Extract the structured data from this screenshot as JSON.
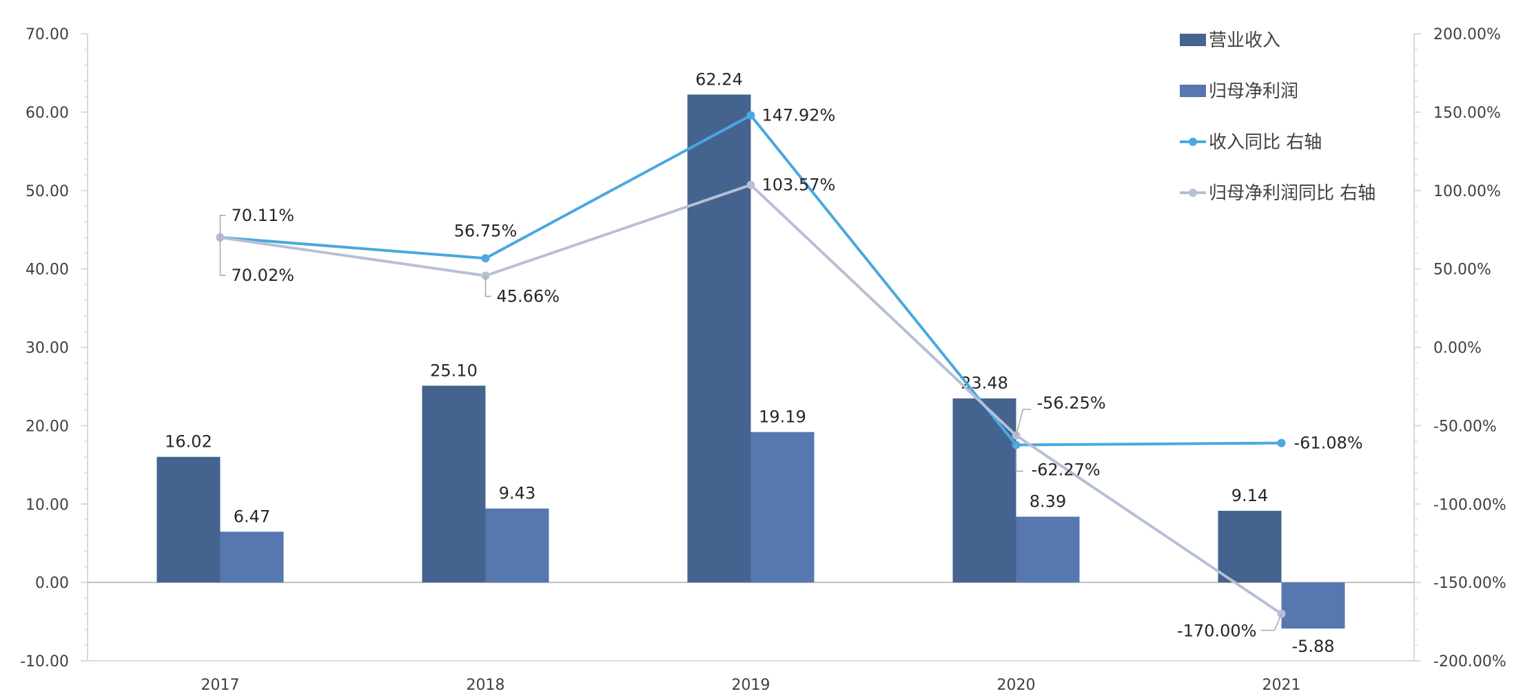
{
  "chart_data": {
    "type": "bar",
    "categories": [
      "2017",
      "2018",
      "2019",
      "2020",
      "2021"
    ],
    "left_axis": {
      "ylim": [
        -10,
        70
      ],
      "ticks": [
        "70.00",
        "60.00",
        "50.00",
        "40.00",
        "30.00",
        "20.00",
        "10.00",
        "0.00",
        "-10.00"
      ]
    },
    "right_axis": {
      "ylim": [
        -200,
        200
      ],
      "ticks": [
        "200.00%",
        "150.00%",
        "100.00%",
        "50.00%",
        "0.00%",
        "-50.00%",
        "-100.00%",
        "-150.00%",
        "-200.00%"
      ]
    },
    "bar_series": [
      {
        "name": "营业收入",
        "color": "#44648f",
        "values": [
          16.02,
          25.1,
          62.24,
          23.48,
          9.14
        ],
        "labels": [
          "16.02",
          "25.10",
          "62.24",
          "23.48",
          "9.14"
        ]
      },
      {
        "name": "归母净利润",
        "color": "#5677b0",
        "values": [
          6.47,
          9.43,
          19.19,
          8.39,
          -5.88
        ],
        "labels": [
          "6.47",
          "9.43",
          "19.19",
          "8.39",
          "-5.88"
        ]
      }
    ],
    "line_series": [
      {
        "name": "收入同比 右轴",
        "color": "#4aa8df",
        "values": [
          70.11,
          56.75,
          147.92,
          -62.27,
          -61.08
        ],
        "labels": [
          "70.11%",
          "56.75%",
          "147.92%",
          "-62.27%",
          "-61.08%"
        ]
      },
      {
        "name": "归母净利润同比 右轴",
        "color": "#b6bfd5",
        "values": [
          70.02,
          45.66,
          103.57,
          -56.25,
          -170.0
        ],
        "labels": [
          "70.02%",
          "45.66%",
          "103.57%",
          "-56.25%",
          "-170.00%"
        ]
      }
    ],
    "legend_position": "top-right",
    "grid": false
  }
}
